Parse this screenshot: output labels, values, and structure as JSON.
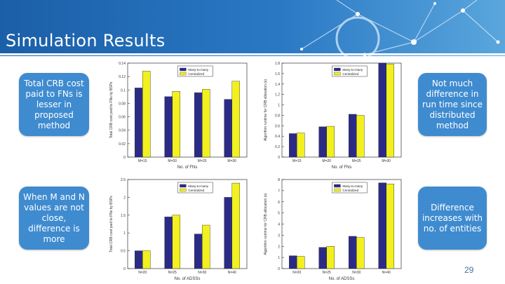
{
  "title": "Simulation Results",
  "page_number": "29",
  "callouts": [
    "Total CRB cost paid to FNs is lesser in proposed method",
    "Not much difference in run time since distributed method",
    "When M and N values are not close, difference is more",
    "Difference increases with no. of entities"
  ],
  "colors": {
    "many_to_many": "#2b2b86",
    "centralized": "#f2f01e",
    "banner": "#2a78c4",
    "callout": "#3f8bd0"
  },
  "chart_data": [
    {
      "type": "bar",
      "categories": [
        "M=15",
        "M=20",
        "M=25",
        "M=30"
      ],
      "series": [
        {
          "name": "Many-to-many",
          "values": [
            0.103,
            0.09,
            0.096,
            0.086
          ]
        },
        {
          "name": "Centralized",
          "values": [
            0.128,
            0.098,
            0.101,
            0.113
          ]
        }
      ],
      "xlabel": "No. of FNs",
      "ylabel": "Total CRB cost paid to FNs by BSPs",
      "ylim": [
        0,
        0.14
      ],
      "yticks": [
        "0",
        "0.02",
        "0.04",
        "0.06",
        "0.08",
        "0.1",
        "0.12",
        "0.14"
      ],
      "legend": "top-center"
    },
    {
      "type": "bar",
      "categories": [
        "M=15",
        "M=20",
        "M=25",
        "M=30"
      ],
      "series": [
        {
          "name": "Many-to-many",
          "values": [
            0.45,
            0.58,
            0.82,
            1.8
          ]
        },
        {
          "name": "Centralized",
          "values": [
            0.46,
            0.59,
            0.8,
            1.78
          ]
        }
      ],
      "xlabel": "No. of FNs",
      "ylabel": "Algorithm runtime for CRB allocation (s)",
      "ylim": [
        0,
        1.8
      ],
      "yticks": [
        "0",
        "0.2",
        "0.4",
        "0.6",
        "0.8",
        "1",
        "1.2",
        "1.4",
        "1.6",
        "1.8"
      ],
      "legend": "top-center"
    },
    {
      "type": "bar",
      "categories": [
        "N=20",
        "N=25",
        "N=30",
        "N=40"
      ],
      "series": [
        {
          "name": "Many-to-many",
          "values": [
            0.5,
            1.45,
            0.97,
            2.0
          ]
        },
        {
          "name": "Centralized",
          "values": [
            0.5,
            1.5,
            1.22,
            2.4
          ]
        }
      ],
      "xlabel": "No. of ADSSs",
      "ylabel": "Total CRB cost paid to FNs by BSPs",
      "ylim": [
        0,
        2.5
      ],
      "yticks": [
        "0",
        "0.5",
        "1",
        "1.5",
        "2",
        "2.5"
      ],
      "legend": "top-center"
    },
    {
      "type": "bar",
      "categories": [
        "N=20",
        "N=25",
        "N=30",
        "N=40"
      ],
      "series": [
        {
          "name": "Many-to-many",
          "values": [
            1.15,
            1.9,
            2.9,
            7.7
          ]
        },
        {
          "name": "Centralized",
          "values": [
            1.1,
            2.0,
            2.8,
            7.6
          ]
        }
      ],
      "xlabel": "No. of ADSSs",
      "ylabel": "Algorithm runtime for CRB allocation (s)",
      "ylim": [
        0,
        8
      ],
      "yticks": [
        "0",
        "1",
        "2",
        "3",
        "4",
        "5",
        "6",
        "7",
        "8"
      ],
      "legend": "top-center"
    }
  ]
}
